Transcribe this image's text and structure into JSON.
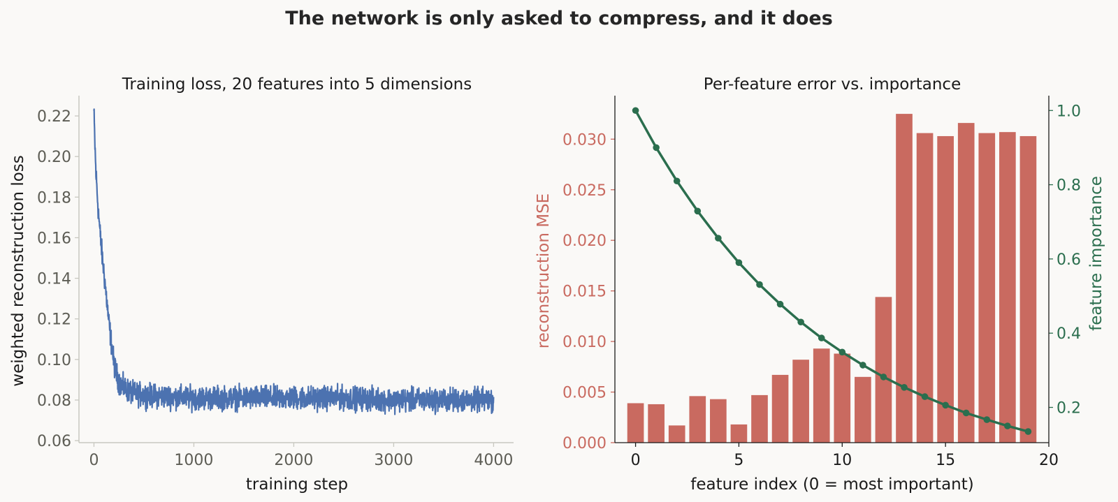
{
  "suptitle": "The network is only asked to compress, and it does",
  "colors": {
    "background": "#faf9f7",
    "loss_line": "#4c72b0",
    "bars": "#c96a60",
    "importance": "#2b6e4e",
    "tick_text": "#5d5d55",
    "axis_text": "#1a1a1a"
  },
  "chart_data": [
    {
      "type": "line",
      "title": "Training loss, 20 features into 5 dimensions",
      "xlabel": "training step",
      "ylabel": "weighted reconstruction loss",
      "xlim": [
        -150,
        4200
      ],
      "ylim": [
        0.059,
        0.23
      ],
      "xticks": [
        0,
        1000,
        2000,
        3000,
        4000
      ],
      "xtick_labels": [
        "0",
        "1000",
        "2000",
        "3000",
        "4000"
      ],
      "yticks": [
        0.06,
        0.08,
        0.1,
        0.12,
        0.14,
        0.16,
        0.18,
        0.2,
        0.22
      ],
      "ytick_labels": [
        "0.06",
        "0.08",
        "0.10",
        "0.12",
        "0.14",
        "0.16",
        "0.18",
        "0.20",
        "0.22"
      ],
      "grid": false,
      "series": [
        {
          "name": "",
          "steps": 4000,
          "x": [
            0,
            10,
            20,
            40,
            60,
            80,
            100,
            120,
            150,
            180,
            200,
            230,
            260,
            300,
            400,
            600,
            1000,
            1500,
            2000,
            2500,
            3000,
            3500,
            4000
          ],
          "y": [
            0.222,
            0.205,
            0.192,
            0.176,
            0.163,
            0.152,
            0.143,
            0.133,
            0.118,
            0.106,
            0.098,
            0.092,
            0.088,
            0.086,
            0.083,
            0.082,
            0.081,
            0.081,
            0.081,
            0.081,
            0.08,
            0.08,
            0.08
          ],
          "noise_amplitude": 0.004,
          "range_min": 0.067,
          "range_max": 0.096
        }
      ]
    },
    {
      "type": "bar",
      "title": "Per-feature error vs. importance",
      "xlabel": "feature index (0 = most important)",
      "ylabel": "reconstruction MSE",
      "ylabel_right": "feature importance",
      "xlim": [
        -1,
        20
      ],
      "ylim": [
        0,
        0.0343
      ],
      "ylim_right": [
        0.105,
        1.04
      ],
      "xticks": [
        0,
        5,
        10,
        15,
        20
      ],
      "xtick_labels": [
        "0",
        "5",
        "10",
        "15",
        "20"
      ],
      "yticks": [
        0,
        0.005,
        0.01,
        0.015,
        0.02,
        0.025,
        0.03
      ],
      "ytick_labels": [
        "0.000",
        "0.005",
        "0.010",
        "0.015",
        "0.020",
        "0.025",
        "0.030"
      ],
      "yticks_right": [
        0.2,
        0.4,
        0.6,
        0.8,
        1.0
      ],
      "ytick_labels_right": [
        "0.2",
        "0.4",
        "0.6",
        "0.8",
        "1.0"
      ],
      "grid": false,
      "categories": [
        0,
        1,
        2,
        3,
        4,
        5,
        6,
        7,
        8,
        9,
        10,
        11,
        12,
        13,
        14,
        15,
        16,
        17,
        18,
        19
      ],
      "series": [
        {
          "name": "",
          "axis": "left",
          "kind": "bar",
          "values": [
            0.0039,
            0.0038,
            0.0017,
            0.0046,
            0.0043,
            0.0018,
            0.0047,
            0.0067,
            0.0082,
            0.0093,
            0.0088,
            0.0065,
            0.0144,
            0.0325,
            0.0306,
            0.0303,
            0.0316,
            0.0306,
            0.0307,
            0.0303
          ]
        },
        {
          "name": "",
          "axis": "right",
          "kind": "line",
          "values": [
            1.0,
            0.9,
            0.81,
            0.729,
            0.656,
            0.59,
            0.531,
            0.478,
            0.43,
            0.387,
            0.349,
            0.314,
            0.282,
            0.254,
            0.229,
            0.206,
            0.185,
            0.167,
            0.15,
            0.135
          ]
        }
      ]
    }
  ]
}
